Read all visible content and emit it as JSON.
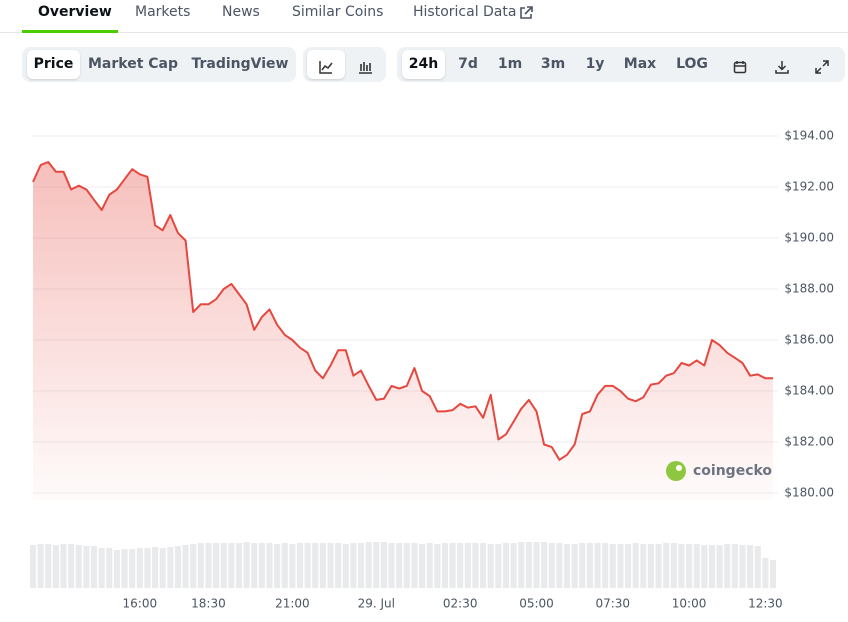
{
  "tabs": [
    "Overview",
    "Markets",
    "News",
    "Similar Coins",
    "Historical Data"
  ],
  "metric_buttons": [
    "Price",
    "Market Cap",
    "TradingView"
  ],
  "range_buttons": [
    "24h",
    "7d",
    "1m",
    "3m",
    "1y",
    "Max",
    "LOG"
  ],
  "chart_data": {
    "type": "line",
    "color": "#e5483f",
    "watermark": "coingecko",
    "categories": [
      null,
      null,
      null,
      null,
      null,
      null,
      null,
      null,
      null,
      null,
      null,
      null,
      null,
      null,
      "16:00",
      null,
      null,
      null,
      null,
      null,
      null,
      null,
      null,
      "18:30",
      null,
      null,
      null,
      null,
      null,
      null,
      null,
      null,
      null,
      null,
      "21:00",
      null,
      null,
      null,
      null,
      null,
      null,
      null,
      null,
      null,
      null,
      "29. Jul",
      null,
      null,
      null,
      null,
      null,
      null,
      null,
      null,
      null,
      null,
      "02:30",
      null,
      null,
      null,
      null,
      null,
      null,
      null,
      null,
      null,
      "05:00",
      null,
      null,
      null,
      null,
      null,
      null,
      null,
      null,
      null,
      "07:30",
      null,
      null,
      null,
      null,
      null,
      null,
      null,
      null,
      null,
      "10:00",
      null,
      null,
      null,
      null,
      null,
      null,
      null,
      null,
      null,
      "12:30",
      null
    ],
    "values": [
      192.2,
      192.86,
      192.98,
      192.6,
      192.6,
      191.9,
      192.05,
      191.9,
      191.5,
      191.1,
      191.7,
      191.9,
      192.3,
      192.7,
      192.5,
      192.4,
      190.5,
      190.3,
      190.9,
      190.2,
      189.9,
      187.1,
      187.4,
      187.4,
      187.6,
      188.0,
      188.2,
      187.8,
      187.4,
      186.4,
      186.9,
      187.2,
      186.6,
      186.2,
      186.0,
      185.7,
      185.5,
      184.8,
      184.5,
      185.0,
      185.6,
      185.6,
      184.6,
      184.8,
      184.2,
      183.65,
      183.7,
      184.2,
      184.1,
      184.2,
      184.9,
      184.0,
      183.8,
      183.2,
      183.2,
      183.25,
      183.5,
      183.35,
      183.4,
      182.95,
      183.85,
      182.1,
      182.3,
      182.8,
      183.3,
      183.65,
      183.2,
      181.9,
      181.8,
      181.3,
      181.5,
      181.9,
      183.1,
      183.2,
      183.85,
      184.2,
      184.2,
      184.0,
      183.7,
      183.6,
      183.75,
      184.25,
      184.3,
      184.6,
      184.7,
      185.1,
      185.0,
      185.2,
      185.0,
      186.0,
      185.8,
      185.5,
      185.3,
      185.1,
      184.6,
      184.65,
      184.5,
      184.5
    ],
    "volume": {
      "color": "#e9eaec",
      "values": [
        43,
        44,
        44,
        43,
        44,
        44,
        43,
        42,
        42,
        40,
        40,
        38,
        39,
        39,
        40,
        40,
        41,
        40,
        41,
        42,
        43,
        44,
        45,
        45,
        45,
        45,
        45,
        45,
        46,
        45,
        45,
        45,
        44,
        45,
        44,
        45,
        45,
        45,
        45,
        45,
        45,
        44,
        45,
        45,
        46,
        46,
        46,
        45,
        45,
        45,
        45,
        44,
        45,
        44,
        45,
        45,
        45,
        45,
        45,
        45,
        44,
        44,
        45,
        45,
        46,
        46,
        46,
        46,
        45,
        45,
        44,
        44,
        45,
        45,
        45,
        45,
        44,
        44,
        44,
        45,
        44,
        44,
        44,
        45,
        45,
        44,
        44,
        44,
        43,
        43,
        43,
        44,
        44,
        43,
        43,
        42,
        30,
        28
      ]
    },
    "ylim": [
      180,
      194
    ],
    "yticks": [
      {
        "value": 180,
        "label": "$180.00"
      },
      {
        "value": 182,
        "label": "$182.00"
      },
      {
        "value": 184,
        "label": "$184.00"
      },
      {
        "value": 186,
        "label": "$186.00"
      },
      {
        "value": 188,
        "label": "$188.00"
      },
      {
        "value": 190,
        "label": "$190.00"
      },
      {
        "value": 192,
        "label": "$192.00"
      },
      {
        "value": 194,
        "label": "$194.00"
      }
    ],
    "grid": true
  }
}
